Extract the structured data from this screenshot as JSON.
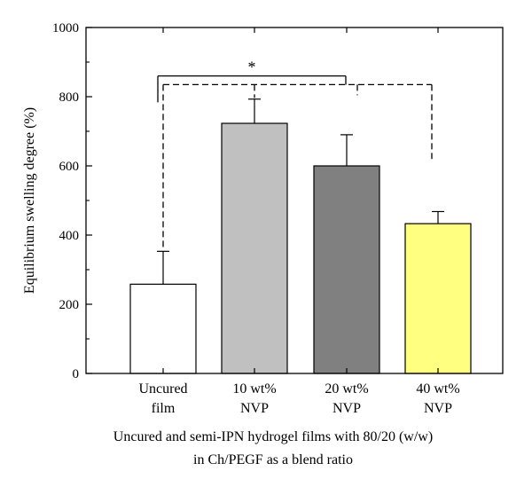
{
  "chart_data": {
    "type": "bar",
    "categories": [
      [
        "Uncured",
        "film"
      ],
      [
        "10 wt%",
        "NVP"
      ],
      [
        "20 wt%",
        "NVP"
      ],
      [
        "40 wt%",
        "NVP"
      ]
    ],
    "values": [
      258,
      723,
      600,
      433
    ],
    "errors": [
      95,
      70,
      90,
      35
    ],
    "colors": [
      "#ffffff",
      "#c0c0c0",
      "#808080",
      "#ffff80"
    ],
    "ylabel": "Equilibrium swelling degree (%)",
    "xlabel_lines": [
      "Uncured and semi-IPN hydrogel films with 80/20 (w/w)",
      "in Ch/PEGF as a blend ratio"
    ],
    "ylim": [
      0,
      1000
    ],
    "yticks": [
      0,
      200,
      400,
      600,
      800,
      1000
    ],
    "grid": false,
    "annotations": {
      "significance_marker": "*",
      "solid_bracket": {
        "from_bar": 0,
        "to_bar": 1,
        "y": 860
      },
      "dashed_bracket": {
        "from_bar": 0,
        "to_bars": [
          1,
          2,
          3
        ],
        "y": 835
      }
    }
  }
}
